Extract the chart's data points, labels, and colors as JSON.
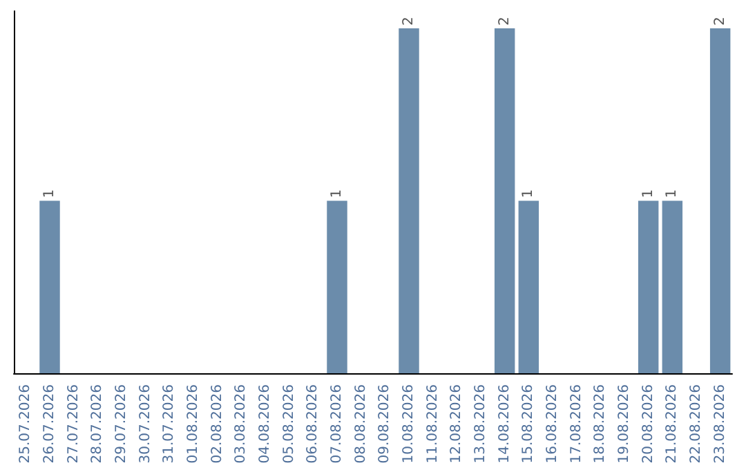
{
  "chart_data": {
    "type": "bar",
    "categories": [
      "25.07.2026",
      "26.07.2026",
      "27.07.2026",
      "28.07.2026",
      "29.07.2026",
      "30.07.2026",
      "31.07.2026",
      "01.08.2026",
      "02.08.2026",
      "03.08.2026",
      "04.08.2026",
      "05.08.2026",
      "06.08.2026",
      "07.08.2026",
      "08.08.2026",
      "09.08.2026",
      "10.08.2026",
      "11.08.2026",
      "12.08.2026",
      "13.08.2026",
      "14.08.2026",
      "15.08.2026",
      "16.08.2026",
      "17.08.2026",
      "18.08.2026",
      "19.08.2026",
      "20.08.2026",
      "21.08.2026",
      "22.08.2026",
      "23.08.2026"
    ],
    "values": [
      0,
      1,
      0,
      0,
      0,
      0,
      0,
      0,
      0,
      0,
      0,
      0,
      0,
      1,
      0,
      0,
      2,
      0,
      0,
      0,
      2,
      1,
      0,
      0,
      0,
      0,
      1,
      1,
      0,
      2
    ],
    "value_labels": [
      null,
      "1",
      null,
      null,
      null,
      null,
      null,
      null,
      null,
      null,
      null,
      null,
      null,
      "1",
      null,
      null,
      "2",
      null,
      null,
      null,
      "2",
      "1",
      null,
      null,
      null,
      null,
      "1",
      "1",
      null,
      "2"
    ],
    "color": "#6b8cab",
    "ylim": [
      0,
      2.1
    ],
    "tick_labels": "x"
  }
}
